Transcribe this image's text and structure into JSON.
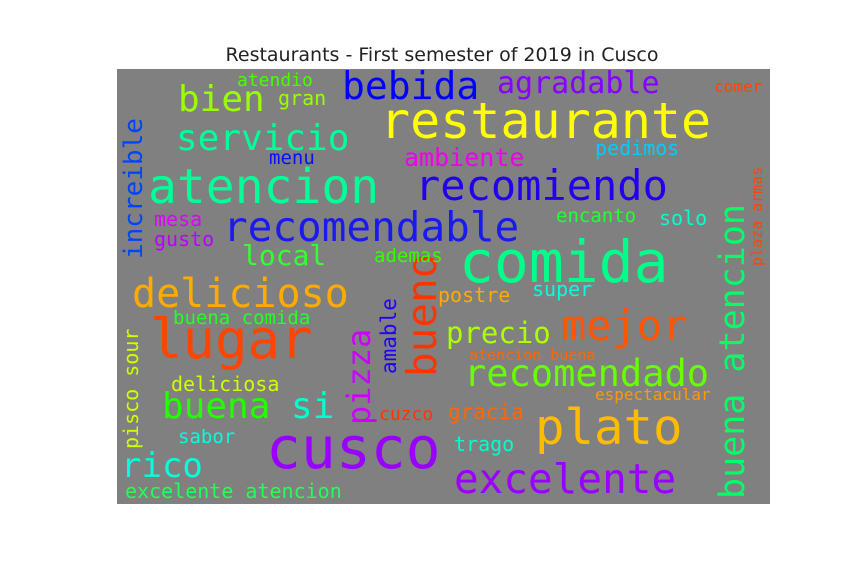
{
  "title": "Restaurants - First semester of 2019 in Cusco",
  "background_color": "#808080",
  "words": [
    {
      "text": "restaurante",
      "color": "#ffff00"
    },
    {
      "text": "atencion",
      "color": "#00ff99"
    },
    {
      "text": "recomiendo",
      "color": "#2200ee"
    },
    {
      "text": "comida",
      "color": "#00ff88"
    },
    {
      "text": "recomendable",
      "color": "#1a1aee"
    },
    {
      "text": "lugar",
      "color": "#ff4400"
    },
    {
      "text": "cusco",
      "color": "#9900ff"
    },
    {
      "text": "plato",
      "color": "#ffbb00"
    },
    {
      "text": "excelente",
      "color": "#9900ff"
    },
    {
      "text": "buena atencion",
      "color": "#00ff66"
    },
    {
      "text": "bueno",
      "color": "#ff3300"
    },
    {
      "text": "mejor",
      "color": "#ff5500"
    },
    {
      "text": "recomendado",
      "color": "#66ff00"
    },
    {
      "text": "delicioso",
      "color": "#ffaa00"
    },
    {
      "text": "servicio",
      "color": "#00ff99"
    },
    {
      "text": "bebida",
      "color": "#0000ff"
    },
    {
      "text": "bien",
      "color": "#99ff00"
    },
    {
      "text": "agradable",
      "color": "#8800ff"
    },
    {
      "text": "pizza",
      "color": "#cc00ff"
    },
    {
      "text": "buena",
      "color": "#22ff00"
    },
    {
      "text": "si",
      "color": "#00ffcc"
    },
    {
      "text": "rico",
      "color": "#00ffdd"
    },
    {
      "text": "increible",
      "color": "#0044ff"
    },
    {
      "text": "precio",
      "color": "#aaff00"
    },
    {
      "text": "local",
      "color": "#33ff33"
    },
    {
      "text": "ambiente",
      "color": "#ee00ee"
    },
    {
      "text": "pedimos",
      "color": "#00ccff"
    },
    {
      "text": "menu",
      "color": "#0011ff"
    },
    {
      "text": "gran",
      "color": "#99ff00"
    },
    {
      "text": "atendio",
      "color": "#44ff00"
    },
    {
      "text": "comer",
      "color": "#ff4400"
    },
    {
      "text": "mesa",
      "color": "#dd00ff"
    },
    {
      "text": "gusto",
      "color": "#bb00ff"
    },
    {
      "text": "encanto",
      "color": "#22ff33"
    },
    {
      "text": "solo",
      "color": "#00ffcc"
    },
    {
      "text": "plaza armas",
      "color": "#ff4400"
    },
    {
      "text": "ademas",
      "color": "#33ff00"
    },
    {
      "text": "postre",
      "color": "#ffaa00"
    },
    {
      "text": "super",
      "color": "#00ffdd"
    },
    {
      "text": "buena comida",
      "color": "#22ff22"
    },
    {
      "text": "amable",
      "color": "#2200ff"
    },
    {
      "text": "pisco sour",
      "color": "#ccff00"
    },
    {
      "text": "atencion buena",
      "color": "#ff6600"
    },
    {
      "text": "deliciosa",
      "color": "#ccff00"
    },
    {
      "text": "espectacular",
      "color": "#ff9900"
    },
    {
      "text": "cuzco",
      "color": "#ff3300"
    },
    {
      "text": "gracia",
      "color": "#ff6600"
    },
    {
      "text": "sabor",
      "color": "#00ffdd"
    },
    {
      "text": "trago",
      "color": "#00ffcc"
    },
    {
      "text": "excelente atencion",
      "color": "#22ff55"
    }
  ]
}
